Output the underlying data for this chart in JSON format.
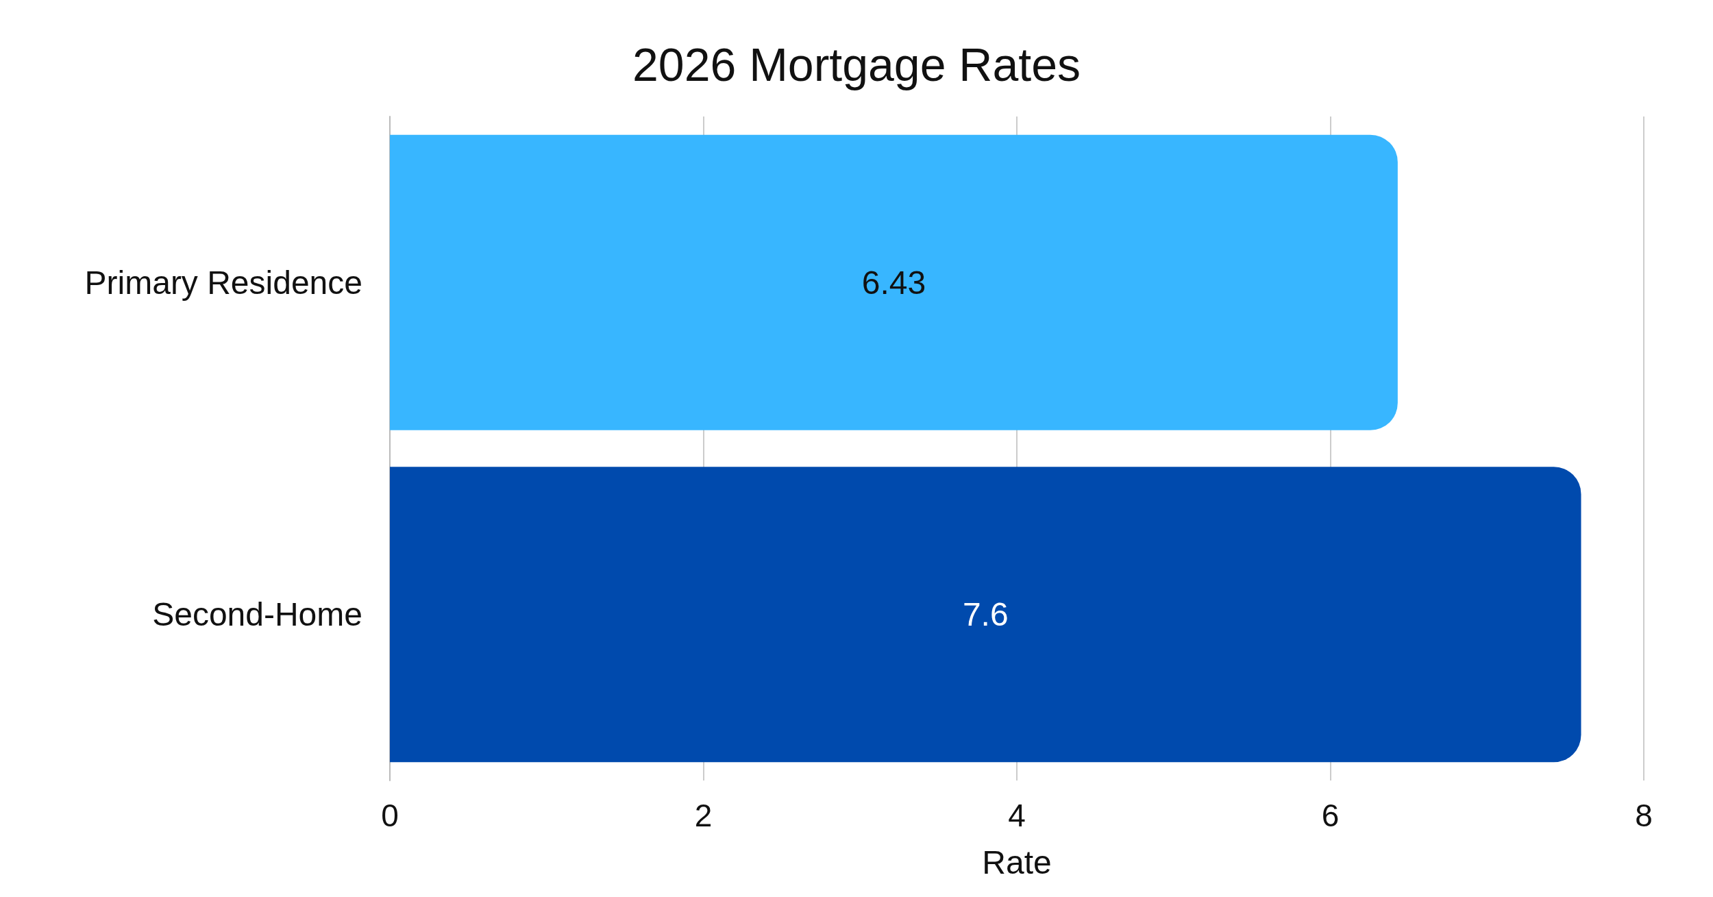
{
  "chart_data": {
    "type": "bar",
    "orientation": "horizontal",
    "title": "2026 Mortgage Rates",
    "xlabel": "Rate",
    "categories": [
      "Primary Residence",
      "Second-Home"
    ],
    "values": [
      6.43,
      7.6
    ],
    "colors": [
      "#38b6ff",
      "#004aad"
    ],
    "xlim": [
      0,
      8
    ],
    "xticks": [
      0,
      2,
      4,
      6,
      8
    ],
    "grid": "x",
    "data_labels": true
  }
}
